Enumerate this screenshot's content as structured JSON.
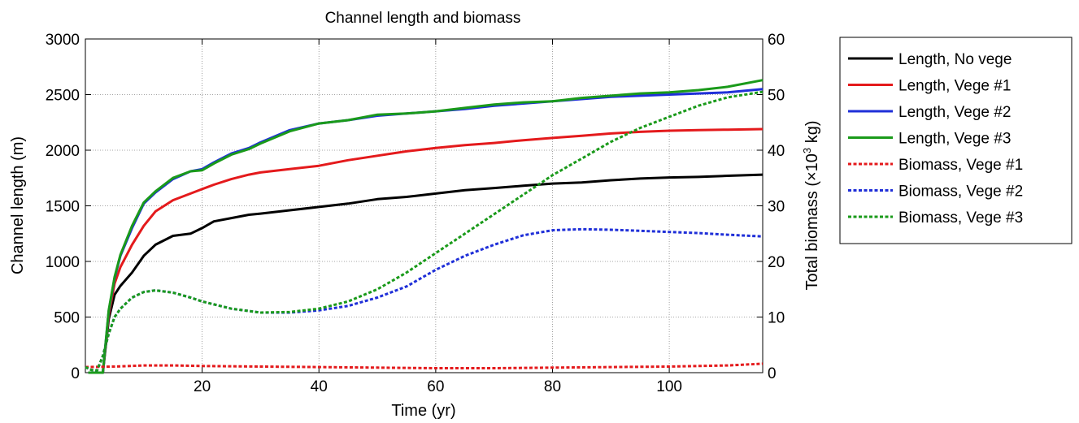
{
  "chart_data": {
    "type": "line",
    "title": "Channel length and biomass",
    "xlabel": "Time (yr)",
    "ylabel_left": "Channel length (m)",
    "ylabel_right_prefix": "Total biomass (×10",
    "ylabel_right_sup": "3",
    "ylabel_right_suffix": " kg)",
    "xlim": [
      0,
      116
    ],
    "ylim_left": [
      0,
      3000
    ],
    "ylim_right": [
      0,
      60
    ],
    "x_ticks": [
      20,
      40,
      60,
      80,
      100
    ],
    "x_tick_labels": [
      "20",
      "40",
      "60",
      "80",
      "100"
    ],
    "y_left_ticks": [
      0,
      500,
      1000,
      1500,
      2000,
      2500,
      3000
    ],
    "y_left_tick_labels": [
      "0",
      "500",
      "1000",
      "1500",
      "2000",
      "2500",
      "3000"
    ],
    "y_right_ticks": [
      0,
      10,
      20,
      30,
      40,
      50,
      60
    ],
    "y_right_tick_labels": [
      "0",
      "10",
      "20",
      "30",
      "40",
      "50",
      "60"
    ],
    "grid": true,
    "legend_position": "outside-right",
    "series": [
      {
        "name": "Length, No vege",
        "axis": "left",
        "color": "#000000",
        "dash": "solid",
        "x": [
          0.5,
          3,
          4,
          5,
          6,
          8,
          10,
          12,
          15,
          18,
          20,
          22,
          25,
          28,
          30,
          35,
          40,
          45,
          50,
          55,
          60,
          65,
          70,
          75,
          80,
          85,
          90,
          95,
          100,
          105,
          110,
          116
        ],
        "y": [
          0,
          0,
          480,
          700,
          780,
          900,
          1050,
          1150,
          1230,
          1250,
          1300,
          1360,
          1390,
          1420,
          1430,
          1460,
          1490,
          1520,
          1560,
          1580,
          1610,
          1640,
          1660,
          1680,
          1700,
          1710,
          1730,
          1745,
          1755,
          1760,
          1770,
          1780
        ]
      },
      {
        "name": "Length, Vege #1",
        "axis": "left",
        "color": "#e41a1c",
        "dash": "solid",
        "x": [
          0.5,
          3,
          4,
          5,
          6,
          8,
          10,
          12,
          15,
          18,
          20,
          22,
          25,
          28,
          30,
          35,
          40,
          45,
          50,
          55,
          60,
          65,
          70,
          75,
          80,
          85,
          90,
          95,
          100,
          105,
          110,
          116
        ],
        "y": [
          0,
          0,
          520,
          800,
          950,
          1150,
          1320,
          1450,
          1550,
          1610,
          1650,
          1690,
          1740,
          1780,
          1800,
          1830,
          1860,
          1910,
          1950,
          1990,
          2020,
          2045,
          2065,
          2090,
          2110,
          2130,
          2150,
          2165,
          2175,
          2180,
          2185,
          2190
        ]
      },
      {
        "name": "Length, Vege #2",
        "axis": "left",
        "color": "#1f2fd8",
        "dash": "solid",
        "x": [
          0.5,
          3,
          4,
          5,
          6,
          8,
          10,
          12,
          15,
          18,
          20,
          22,
          25,
          28,
          30,
          35,
          40,
          45,
          50,
          55,
          60,
          65,
          70,
          75,
          80,
          85,
          90,
          95,
          100,
          105,
          110,
          116
        ],
        "y": [
          0,
          0,
          550,
          850,
          1050,
          1300,
          1520,
          1620,
          1740,
          1810,
          1830,
          1890,
          1970,
          2020,
          2070,
          2180,
          2240,
          2270,
          2310,
          2330,
          2350,
          2370,
          2400,
          2420,
          2440,
          2460,
          2480,
          2490,
          2500,
          2510,
          2520,
          2550
        ]
      },
      {
        "name": "Length, Vege #3",
        "axis": "left",
        "color": "#1a9a1a",
        "dash": "solid",
        "x": [
          0.5,
          3,
          4,
          5,
          6,
          8,
          10,
          12,
          15,
          18,
          20,
          22,
          25,
          28,
          30,
          35,
          40,
          45,
          50,
          55,
          60,
          65,
          70,
          75,
          80,
          85,
          90,
          95,
          100,
          105,
          110,
          116
        ],
        "y": [
          0,
          0,
          560,
          860,
          1060,
          1320,
          1530,
          1630,
          1750,
          1810,
          1820,
          1880,
          1960,
          2010,
          2060,
          2170,
          2240,
          2270,
          2320,
          2330,
          2350,
          2380,
          2410,
          2430,
          2440,
          2470,
          2490,
          2510,
          2520,
          2540,
          2570,
          2630
        ]
      },
      {
        "name": "Biomass, Vege #1",
        "axis": "right",
        "color": "#e41a1c",
        "dash": "dashed",
        "x": [
          0,
          5,
          10,
          15,
          20,
          30,
          40,
          50,
          60,
          70,
          80,
          90,
          100,
          110,
          116
        ],
        "y": [
          1.0,
          1.1,
          1.3,
          1.3,
          1.2,
          1.1,
          1.0,
          0.9,
          0.8,
          0.8,
          0.9,
          1.0,
          1.1,
          1.3,
          1.6
        ]
      },
      {
        "name": "Biomass, Vege #2",
        "axis": "right",
        "color": "#1f2fd8",
        "dash": "dashed",
        "x": [
          0,
          1,
          2,
          3,
          4,
          5,
          6,
          8,
          10,
          12,
          15,
          18,
          20,
          25,
          30,
          35,
          40,
          45,
          50,
          55,
          60,
          65,
          70,
          75,
          80,
          85,
          90,
          95,
          100,
          105,
          110,
          116
        ],
        "y": [
          1.0,
          0.5,
          0.4,
          3.0,
          7.0,
          10.0,
          11.5,
          13.5,
          14.5,
          14.8,
          14.4,
          13.5,
          12.8,
          11.5,
          10.8,
          10.8,
          11.2,
          12.0,
          13.5,
          15.5,
          18.5,
          21.0,
          23.0,
          24.7,
          25.6,
          25.8,
          25.7,
          25.5,
          25.3,
          25.1,
          24.8,
          24.5
        ]
      },
      {
        "name": "Biomass, Vege #3",
        "axis": "right",
        "color": "#1a9a1a",
        "dash": "dashed",
        "x": [
          0,
          1,
          2,
          3,
          4,
          5,
          6,
          8,
          10,
          12,
          15,
          18,
          20,
          25,
          30,
          35,
          40,
          45,
          50,
          55,
          60,
          65,
          70,
          75,
          80,
          85,
          90,
          95,
          100,
          105,
          110,
          116
        ],
        "y": [
          1.0,
          0.5,
          0.4,
          3.0,
          7.0,
          10.0,
          11.5,
          13.5,
          14.5,
          14.8,
          14.4,
          13.5,
          12.8,
          11.5,
          10.8,
          10.9,
          11.5,
          12.8,
          15.0,
          18.0,
          21.5,
          25.0,
          28.5,
          32.0,
          35.5,
          38.5,
          41.5,
          44.0,
          46.0,
          48.0,
          49.5,
          50.5
        ]
      }
    ]
  }
}
